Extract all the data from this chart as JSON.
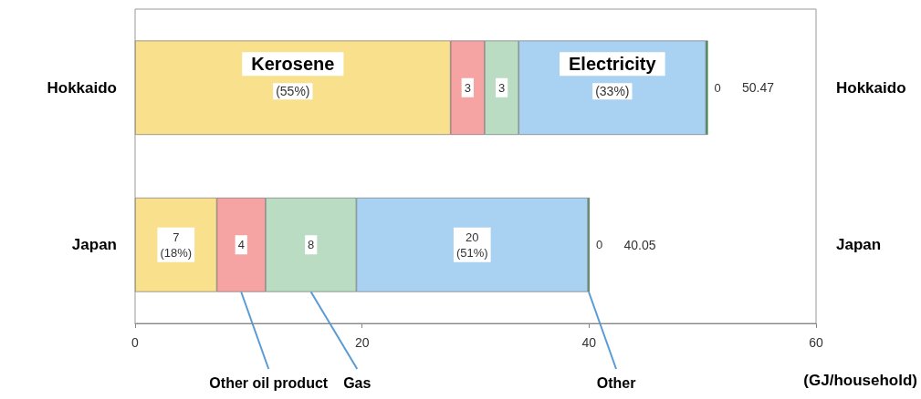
{
  "chart_data": {
    "type": "bar",
    "orientation": "horizontal",
    "stacked": true,
    "categories": [
      "Hokkaido",
      "Japan"
    ],
    "y2_categories": [
      "Hokkaido",
      "Japan"
    ],
    "xlim": [
      0,
      60
    ],
    "xticks": [
      0,
      20,
      40,
      60
    ],
    "grid": false,
    "xlabel": "(GJ/household)",
    "series": [
      {
        "name": "Kerosene",
        "color": "#f8e08c",
        "values": [
          27.8,
          7.2
        ],
        "value_labels": [
          null,
          "7\n(18%)"
        ]
      },
      {
        "name": "Other oil product",
        "color": "#f5a3a3",
        "values": [
          3,
          4.3
        ],
        "value_labels": [
          "3",
          "4"
        ]
      },
      {
        "name": "Gas",
        "color": "#b9dcc3",
        "values": [
          3,
          8
        ],
        "value_labels": [
          "3",
          "8"
        ]
      },
      {
        "name": "Electricity",
        "color": "#a9d2f2",
        "values": [
          16.5,
          20.4
        ],
        "value_labels": [
          null,
          "20\n(51%)"
        ]
      },
      {
        "name": "Other",
        "color": "#1f9a3c",
        "values": [
          0.17,
          0.15
        ],
        "value_labels": [
          "0",
          "0"
        ]
      }
    ],
    "totals": [
      "50.47",
      "40.05"
    ],
    "annotations": [
      "(55%)",
      "(33%)"
    ]
  }
}
